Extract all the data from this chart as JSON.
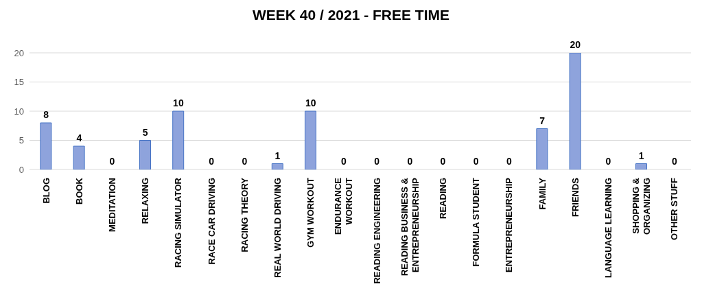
{
  "chart_data": {
    "type": "bar",
    "title": "WEEK 40 / 2021 - FREE TIME",
    "categories": [
      "BLOG",
      "BOOK",
      "MEDITATION",
      "RELAXING",
      "RACING SIMULATOR",
      "RACE CAR DRIVING",
      "RACING THEORY",
      "REAL WORLD DRIVING",
      "GYM WORKOUT",
      "ENDURANCE\nWORKOUT",
      "READING ENGINEERING",
      "READING BUSINESS &\nENTREPRENEURSHIP",
      "READING",
      "FORMULA STUDENT",
      "ENTREPRENEURSHIP",
      "FAMILY",
      "FRIENDS",
      "LANGUAGE LEARNING",
      "SHOPPING &\nORGANIZING",
      "OTHER STUFF"
    ],
    "values": [
      8,
      4,
      0,
      5,
      10,
      0,
      0,
      1,
      10,
      0,
      0,
      0,
      0,
      0,
      0,
      7,
      20,
      0,
      1,
      0
    ],
    "color": "#8ea3dc",
    "ylim": [
      0,
      20
    ],
    "yticks": [
      0,
      5,
      10,
      15,
      20
    ],
    "grid": "y",
    "data_labels": true
  }
}
